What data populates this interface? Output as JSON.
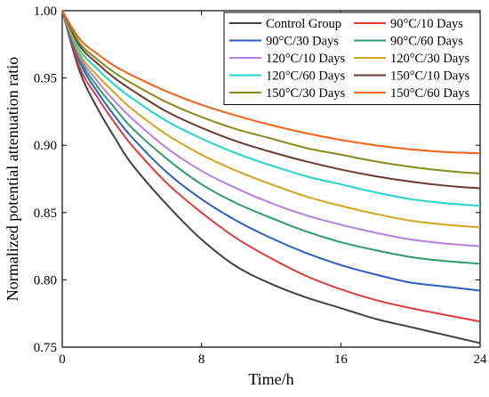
{
  "chart_data": {
    "type": "line",
    "title": "",
    "xlabel": "Time/h",
    "ylabel": "Normalized potential attenuation ratio",
    "xlim": [
      0,
      24
    ],
    "ylim": [
      0.75,
      1.0
    ],
    "xticks": [
      0,
      8,
      16,
      24
    ],
    "yticks": [
      0.75,
      0.8,
      0.85,
      0.9,
      0.95,
      1.0
    ],
    "xtick_labels": [
      "0",
      "8",
      "16",
      "24"
    ],
    "ytick_labels": [
      "0.75",
      "0.80",
      "0.85",
      "0.90",
      "0.95",
      "1.00"
    ],
    "grid": false,
    "legend_position": "top-right",
    "legend_columns": 2,
    "x": [
      0,
      1,
      2,
      3,
      4,
      6,
      8,
      10,
      12,
      14,
      16,
      18,
      20,
      22,
      24
    ],
    "series": [
      {
        "name": "Control Group",
        "color": "#404040",
        "values": [
          1.0,
          0.955,
          0.928,
          0.906,
          0.886,
          0.856,
          0.83,
          0.81,
          0.797,
          0.787,
          0.779,
          0.771,
          0.765,
          0.759,
          0.753
        ]
      },
      {
        "name": "90°C/10 Days",
        "color": "#e03a3a",
        "values": [
          1.0,
          0.958,
          0.936,
          0.917,
          0.9,
          0.872,
          0.85,
          0.831,
          0.816,
          0.803,
          0.793,
          0.785,
          0.779,
          0.774,
          0.769
        ]
      },
      {
        "name": "90°C/30 Days",
        "color": "#2a5fc0",
        "values": [
          1.0,
          0.962,
          0.94,
          0.922,
          0.906,
          0.88,
          0.86,
          0.844,
          0.831,
          0.82,
          0.811,
          0.804,
          0.798,
          0.795,
          0.792
        ]
      },
      {
        "name": "90°C/60 Days",
        "color": "#2e9a68",
        "values": [
          1.0,
          0.964,
          0.944,
          0.928,
          0.913,
          0.89,
          0.871,
          0.857,
          0.846,
          0.836,
          0.828,
          0.822,
          0.817,
          0.814,
          0.812
        ]
      },
      {
        "name": "120°C/10 Days",
        "color": "#b57ee0",
        "values": [
          1.0,
          0.966,
          0.948,
          0.933,
          0.92,
          0.898,
          0.881,
          0.868,
          0.857,
          0.848,
          0.841,
          0.835,
          0.83,
          0.827,
          0.825
        ]
      },
      {
        "name": "120°C/30 Days",
        "color": "#d4a21c",
        "values": [
          1.0,
          0.968,
          0.952,
          0.939,
          0.927,
          0.908,
          0.893,
          0.881,
          0.871,
          0.862,
          0.855,
          0.849,
          0.844,
          0.841,
          0.839
        ]
      },
      {
        "name": "120°C/60 Days",
        "color": "#22d4cc",
        "values": [
          1.0,
          0.971,
          0.957,
          0.945,
          0.935,
          0.918,
          0.905,
          0.894,
          0.885,
          0.877,
          0.871,
          0.865,
          0.86,
          0.857,
          0.855
        ]
      },
      {
        "name": "150°C/10 Days",
        "color": "#6b3a2e",
        "values": [
          1.0,
          0.974,
          0.961,
          0.95,
          0.941,
          0.925,
          0.913,
          0.903,
          0.895,
          0.888,
          0.882,
          0.877,
          0.873,
          0.87,
          0.868
        ]
      },
      {
        "name": "150°C/30 Days",
        "color": "#8a8a1a",
        "values": [
          1.0,
          0.976,
          0.964,
          0.954,
          0.946,
          0.932,
          0.921,
          0.912,
          0.905,
          0.898,
          0.893,
          0.888,
          0.884,
          0.881,
          0.879
        ]
      },
      {
        "name": "150°C/60 Days",
        "color": "#f0621a",
        "values": [
          1.0,
          0.979,
          0.968,
          0.959,
          0.952,
          0.94,
          0.93,
          0.922,
          0.915,
          0.909,
          0.904,
          0.9,
          0.897,
          0.895,
          0.894
        ]
      }
    ]
  }
}
